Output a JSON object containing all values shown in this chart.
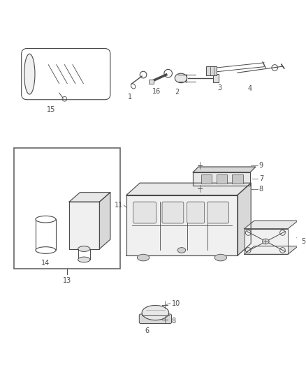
{
  "bg_color": "#ffffff",
  "line_color": "#4a4a4a",
  "label_color": "#333333",
  "fig_width": 4.38,
  "fig_height": 5.33,
  "dpi": 100
}
